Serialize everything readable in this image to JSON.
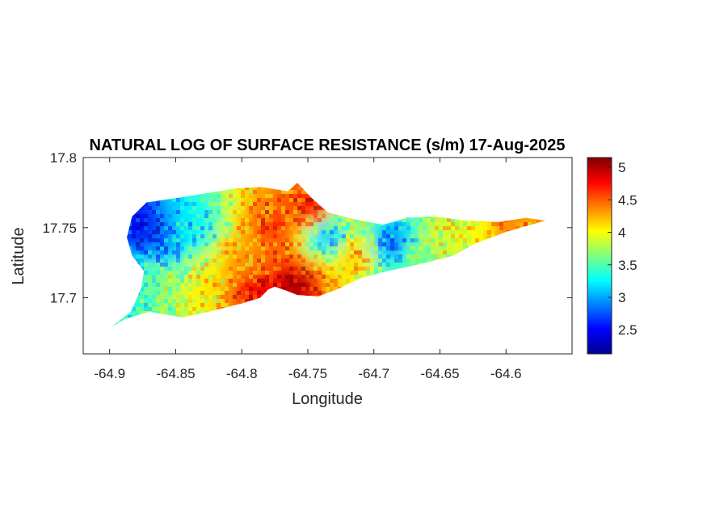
{
  "chart_data": {
    "type": "heatmap",
    "title": "NATURAL LOG OF SURFACE RESISTANCE (s/m) 17-Aug-2025",
    "xlabel": "Longitude",
    "ylabel": "Latitude",
    "xlim": [
      -64.92,
      -64.55
    ],
    "ylim": [
      17.66,
      17.8
    ],
    "x_ticks": [
      -64.9,
      -64.85,
      -64.8,
      -64.75,
      -64.7,
      -64.65,
      -64.6
    ],
    "x_tick_labels": [
      "-64.9",
      "-64.85",
      "-64.8",
      "-64.75",
      "-64.7",
      "-64.65",
      "-64.6"
    ],
    "y_ticks": [
      17.7,
      17.75,
      17.8
    ],
    "y_tick_labels": [
      "17.7",
      "17.75",
      "17.8"
    ],
    "colormap": "jet",
    "color_range": [
      2.13,
      5.15
    ],
    "colorbar_ticks": [
      2.5,
      3,
      3.5,
      4,
      4.5,
      5
    ],
    "colorbar_tick_labels": [
      "2.5",
      "3",
      "3.5",
      "4",
      "4.5",
      "5"
    ],
    "grid": false,
    "region_outline": [
      [
        -64.899,
        17.679
      ],
      [
        -64.884,
        17.69
      ],
      [
        -64.876,
        17.707
      ],
      [
        -64.874,
        17.719
      ],
      [
        -64.883,
        17.73
      ],
      [
        -64.887,
        17.743
      ],
      [
        -64.883,
        17.758
      ],
      [
        -64.872,
        17.768
      ],
      [
        -64.85,
        17.771
      ],
      [
        -64.83,
        17.774
      ],
      [
        -64.805,
        17.778
      ],
      [
        -64.785,
        17.779
      ],
      [
        -64.765,
        17.776
      ],
      [
        -64.758,
        17.782
      ],
      [
        -64.748,
        17.772
      ],
      [
        -64.735,
        17.761
      ],
      [
        -64.715,
        17.756
      ],
      [
        -64.693,
        17.752
      ],
      [
        -64.675,
        17.757
      ],
      [
        -64.655,
        17.758
      ],
      [
        -64.63,
        17.755
      ],
      [
        -64.605,
        17.754
      ],
      [
        -64.585,
        17.757
      ],
      [
        -64.57,
        17.755
      ],
      [
        -64.6,
        17.747
      ],
      [
        -64.625,
        17.738
      ],
      [
        -64.64,
        17.73
      ],
      [
        -64.665,
        17.724
      ],
      [
        -64.69,
        17.719
      ],
      [
        -64.71,
        17.714
      ],
      [
        -64.728,
        17.706
      ],
      [
        -64.742,
        17.701
      ],
      [
        -64.758,
        17.702
      ],
      [
        -64.766,
        17.705
      ],
      [
        -64.775,
        17.708
      ],
      [
        -64.78,
        17.706
      ],
      [
        -64.786,
        17.7
      ],
      [
        -64.8,
        17.696
      ],
      [
        -64.825,
        17.69
      ],
      [
        -64.845,
        17.686
      ],
      [
        -64.87,
        17.69
      ],
      [
        -64.888,
        17.685
      ]
    ],
    "value_field": [
      {
        "lon": -64.875,
        "lat": 17.748,
        "value": 2.4
      },
      {
        "lon": -64.86,
        "lat": 17.735,
        "value": 2.9
      },
      {
        "lon": -64.835,
        "lat": 17.75,
        "value": 3.2
      },
      {
        "lon": -64.86,
        "lat": 17.715,
        "value": 3.7
      },
      {
        "lon": -64.83,
        "lat": 17.71,
        "value": 4.1
      },
      {
        "lon": -64.8,
        "lat": 17.73,
        "value": 4.3
      },
      {
        "lon": -64.775,
        "lat": 17.75,
        "value": 4.6
      },
      {
        "lon": -64.79,
        "lat": 17.705,
        "value": 4.8
      },
      {
        "lon": -64.76,
        "lat": 17.708,
        "value": 5.05
      },
      {
        "lon": -64.745,
        "lat": 17.765,
        "value": 4.8
      },
      {
        "lon": -64.735,
        "lat": 17.745,
        "value": 3.0
      },
      {
        "lon": -64.715,
        "lat": 17.73,
        "value": 4.2
      },
      {
        "lon": -64.685,
        "lat": 17.738,
        "value": 2.8
      },
      {
        "lon": -64.67,
        "lat": 17.73,
        "value": 3.6
      },
      {
        "lon": -64.645,
        "lat": 17.745,
        "value": 3.9
      },
      {
        "lon": -64.615,
        "lat": 17.75,
        "value": 4.0
      },
      {
        "lon": -64.6,
        "lat": 17.752,
        "value": 4.4
      },
      {
        "lon": -64.885,
        "lat": 17.7,
        "value": 3.4
      }
    ]
  }
}
